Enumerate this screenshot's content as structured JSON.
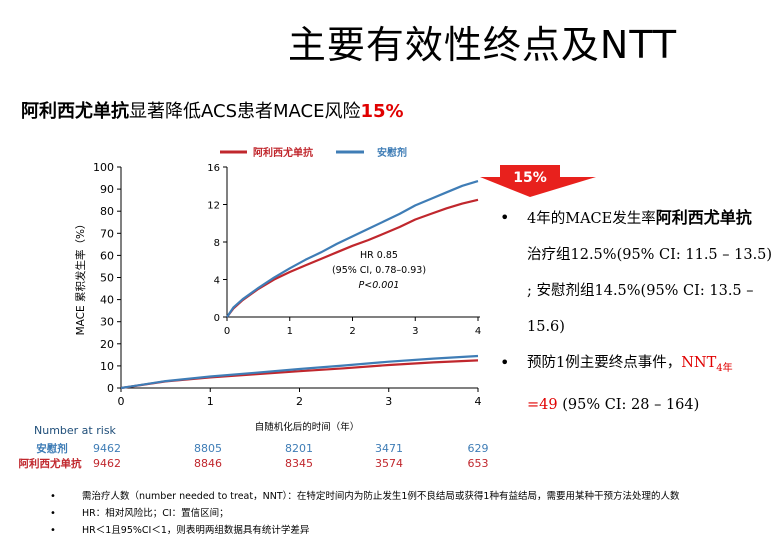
{
  "slide": {
    "title": "主要有效性终点及NTT",
    "subtitle_bold": "阿利西尤单抗",
    "subtitle_mid": "显著降低ACS患者MACE风险",
    "subtitle_red": "15%"
  },
  "badge": {
    "text": "15%",
    "color": "#e8211d"
  },
  "bullets": [
    {
      "line1_pre": "4年的MACE发生率",
      "line1_bold": "阿利西尤单抗",
      "detail": "治疗组12.5%(95% CI: 11.5 – 13.5) ; 安慰剂组14.5%(95% CI: 13.5 – 15.6)"
    },
    {
      "pre": "预防1例主要终点事件，",
      "red": "NNT",
      "sub": "4年",
      "red2": "=49",
      "post": " (95% CI: 28 – 164)"
    }
  ],
  "notes": [
    "需治疗人数（number needed to treat，NNT）：在特定时间内为防止发生1例不良结局或获得1种有益结局，需要用某种干预方法处理的人数",
    "HR：相对风险比；CI：置信区间；",
    "HR＜1且95%CI＜1，则表明两组数据具有统计学差异"
  ],
  "chart_data": [
    {
      "type": "line",
      "panel": "main",
      "ylabel": "MACE 累积发生率（%）",
      "xlabel": "自随机化后的时间（年）",
      "xlim": [
        0,
        4
      ],
      "ylim": [
        0,
        100
      ],
      "xticks": [
        0,
        1,
        2,
        3,
        4
      ],
      "yticks": [
        0,
        10,
        20,
        30,
        40,
        50,
        60,
        70,
        80,
        90,
        100
      ],
      "series": [
        {
          "name": "阿利西尤单抗",
          "color": "#c0272d",
          "x": [
            0,
            0.5,
            1,
            1.5,
            2,
            2.5,
            3,
            3.5,
            4
          ],
          "y": [
            0,
            3.0,
            4.8,
            6.2,
            7.6,
            8.9,
            10.4,
            11.6,
            12.5
          ]
        },
        {
          "name": "安慰剂",
          "color": "#3f7db6",
          "x": [
            0,
            0.5,
            1,
            1.5,
            2,
            2.5,
            3,
            3.5,
            4
          ],
          "y": [
            0,
            3.1,
            5.2,
            6.9,
            8.6,
            10.2,
            11.9,
            13.3,
            14.5
          ]
        }
      ],
      "risk_table": {
        "header": "Number at risk",
        "rows": [
          {
            "label": "安慰剂",
            "color": "#3f7db6",
            "values": [
              "9462",
              "8805",
              "8201",
              "3471",
              "629"
            ]
          },
          {
            "label": "阿利西尤单抗",
            "color": "#c0272d",
            "values": [
              "9462",
              "8846",
              "8345",
              "3574",
              "653"
            ]
          }
        ]
      }
    },
    {
      "type": "line",
      "panel": "inset",
      "xlim": [
        0,
        4
      ],
      "ylim": [
        0,
        16
      ],
      "xticks": [
        0,
        1,
        2,
        3,
        4
      ],
      "yticks": [
        0,
        4,
        8,
        12,
        16
      ],
      "legend": [
        "阿利西尤单抗",
        "安慰剂"
      ],
      "legend_position": "top",
      "annotation": [
        "HR 0.85",
        "(95% CI, 0.78–0.93)",
        "P<0.001"
      ],
      "series": [
        {
          "name": "阿利西尤单抗",
          "color": "#c0272d",
          "x": [
            0,
            0.1,
            0.25,
            0.5,
            0.75,
            1,
            1.25,
            1.5,
            1.75,
            2,
            2.25,
            2.5,
            2.75,
            3,
            3.25,
            3.5,
            3.75,
            4
          ],
          "y": [
            0,
            0.9,
            1.8,
            3.0,
            4.0,
            4.8,
            5.5,
            6.2,
            6.9,
            7.6,
            8.2,
            8.9,
            9.6,
            10.4,
            11.0,
            11.6,
            12.1,
            12.5
          ]
        },
        {
          "name": "安慰剂",
          "color": "#3f7db6",
          "x": [
            0,
            0.1,
            0.25,
            0.5,
            0.75,
            1,
            1.25,
            1.5,
            1.75,
            2,
            2.25,
            2.5,
            2.75,
            3,
            3.25,
            3.5,
            3.75,
            4
          ],
          "y": [
            0,
            1.0,
            1.9,
            3.1,
            4.2,
            5.2,
            6.1,
            6.9,
            7.8,
            8.6,
            9.4,
            10.2,
            11.0,
            11.9,
            12.6,
            13.3,
            14.0,
            14.5
          ]
        }
      ]
    }
  ]
}
